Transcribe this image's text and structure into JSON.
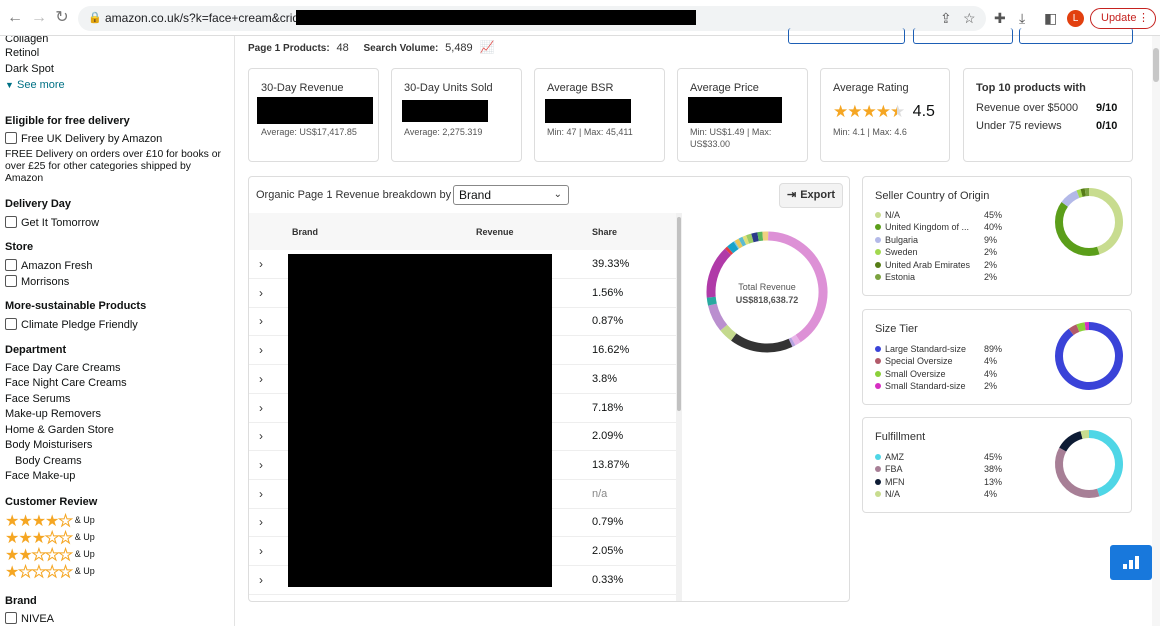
{
  "browser": {
    "url": "amazon.co.uk/s?k=face+cream&crid=",
    "update_label": "Update",
    "profile_initial": "L"
  },
  "sidebar": {
    "items_top": [
      "Collagen",
      "Retinol",
      "Dark Spot"
    ],
    "see_more": "See more",
    "free_delivery": {
      "heading": "Eligible for free delivery",
      "checkbox": "Free UK Delivery by Amazon",
      "note": "FREE Delivery on orders over £10 for books or over £25 for other categories shipped by Amazon"
    },
    "delivery_day": {
      "heading": "Delivery Day",
      "checkbox": "Get It Tomorrow"
    },
    "store": {
      "heading": "Store",
      "options": [
        "Amazon Fresh",
        "Morrisons"
      ]
    },
    "sustainable": {
      "heading": "More-sustainable Products",
      "checkbox": "Climate Pledge Friendly"
    },
    "department": {
      "heading": "Department",
      "items": [
        "Face Day Care Creams",
        "Face Night Care Creams",
        "Face Serums",
        "Make-up Removers",
        "Home & Garden Store",
        "Body Moisturisers",
        "Body Creams",
        "Face Make-up"
      ]
    },
    "customer_review": {
      "heading": "Customer Review",
      "up_label": "& Up",
      "ratings": [
        4,
        3,
        2,
        1
      ]
    },
    "brand": {
      "heading": "Brand",
      "first": "NIVEA"
    }
  },
  "summary": {
    "page1_label": "Page 1 Products:",
    "page1_value": "48",
    "volume_label": "Search Volume:",
    "volume_value": "5,489"
  },
  "cards": [
    {
      "title": "30-Day Revenue",
      "sub": "Average: US$17,417.85"
    },
    {
      "title": "30-Day Units Sold",
      "sub": "Average: 2,275.319"
    },
    {
      "title": "Average BSR",
      "sub": "Min: 47 | Max: 45,411"
    },
    {
      "title": "Average Price",
      "sub": "Min: US$1.49 | Max: US$33.00"
    },
    {
      "title": "Average Rating",
      "value": "4.5",
      "rating": 4.5,
      "sub": "Min: 4.1 | Max: 4.6"
    }
  ],
  "top10": {
    "title": "Top 10 products with",
    "rows": [
      {
        "label": "Revenue over $5000",
        "value": "9/10"
      },
      {
        "label": "Under 75 reviews",
        "value": "0/10"
      }
    ]
  },
  "breakdown": {
    "label": "Organic Page 1 Revenue breakdown by",
    "select_value": "Brand",
    "export_label": "Export",
    "columns": [
      "Brand",
      "Revenue",
      "Share"
    ],
    "shares": [
      "39.33%",
      "1.56%",
      "0.87%",
      "16.62%",
      "3.8%",
      "7.18%",
      "2.09%",
      "13.87%",
      "n/a",
      "0.79%",
      "2.05%",
      "0.33%"
    ],
    "donut_label": "Total Revenue",
    "donut_value": "US$818,638.72",
    "donut_colors": [
      "#dd91d6",
      "#e8b4e8",
      "#b5a3e0",
      "#333333",
      "#c4d98d",
      "#ba8fcf",
      "#29a9a0",
      "#b03aa8",
      "#e23f45",
      "#17a3c9",
      "#74c4e2",
      "#e9c85a",
      "#5dbbd0",
      "#e0e078",
      "#9ccc65",
      "#2a3a8a",
      "#5ab65a",
      "#f0d080"
    ],
    "donut_values": [
      39.33,
      1.56,
      0.87,
      16.62,
      3.8,
      7.18,
      2.09,
      13.87,
      0.79,
      2.05,
      0.33,
      1.2,
      1.1,
      1.0,
      1.4,
      1.6,
      1.3,
      1.5
    ]
  },
  "seller_country": {
    "title": "Seller Country of Origin",
    "items": [
      {
        "name": "N/A",
        "pct": "45%",
        "value": 45,
        "color": "#c8dc8f"
      },
      {
        "name": "United Kingdom of ...",
        "pct": "40%",
        "value": 40,
        "color": "#5b9e1a"
      },
      {
        "name": "Bulgaria",
        "pct": "9%",
        "value": 9,
        "color": "#b3b9e8"
      },
      {
        "name": "Sweden",
        "pct": "2%",
        "value": 2,
        "color": "#a2d84f"
      },
      {
        "name": "United Arab Emirates",
        "pct": "2%",
        "value": 2,
        "color": "#567d16"
      },
      {
        "name": "Estonia",
        "pct": "2%",
        "value": 2,
        "color": "#7ba23f"
      }
    ]
  },
  "size_tier": {
    "title": "Size Tier",
    "items": [
      {
        "name": "Large Standard-size",
        "pct": "89%",
        "value": 89,
        "color": "#3a43d8"
      },
      {
        "name": "Special Oversize",
        "pct": "4%",
        "value": 4,
        "color": "#b25a6a"
      },
      {
        "name": "Small Oversize",
        "pct": "4%",
        "value": 4,
        "color": "#8bd03a"
      },
      {
        "name": "Small Standard-size",
        "pct": "2%",
        "value": 2,
        "color": "#d62ec2"
      }
    ]
  },
  "fulfillment": {
    "title": "Fulfillment",
    "items": [
      {
        "name": "AMZ",
        "pct": "45%",
        "value": 45,
        "color": "#4fd6e6"
      },
      {
        "name": "FBA",
        "pct": "38%",
        "value": 38,
        "color": "#a77f96"
      },
      {
        "name": "MFN",
        "pct": "13%",
        "value": 13,
        "color": "#0d1b34"
      },
      {
        "name": "N/A",
        "pct": "4%",
        "value": 4,
        "color": "#c8dc8f"
      }
    ]
  }
}
